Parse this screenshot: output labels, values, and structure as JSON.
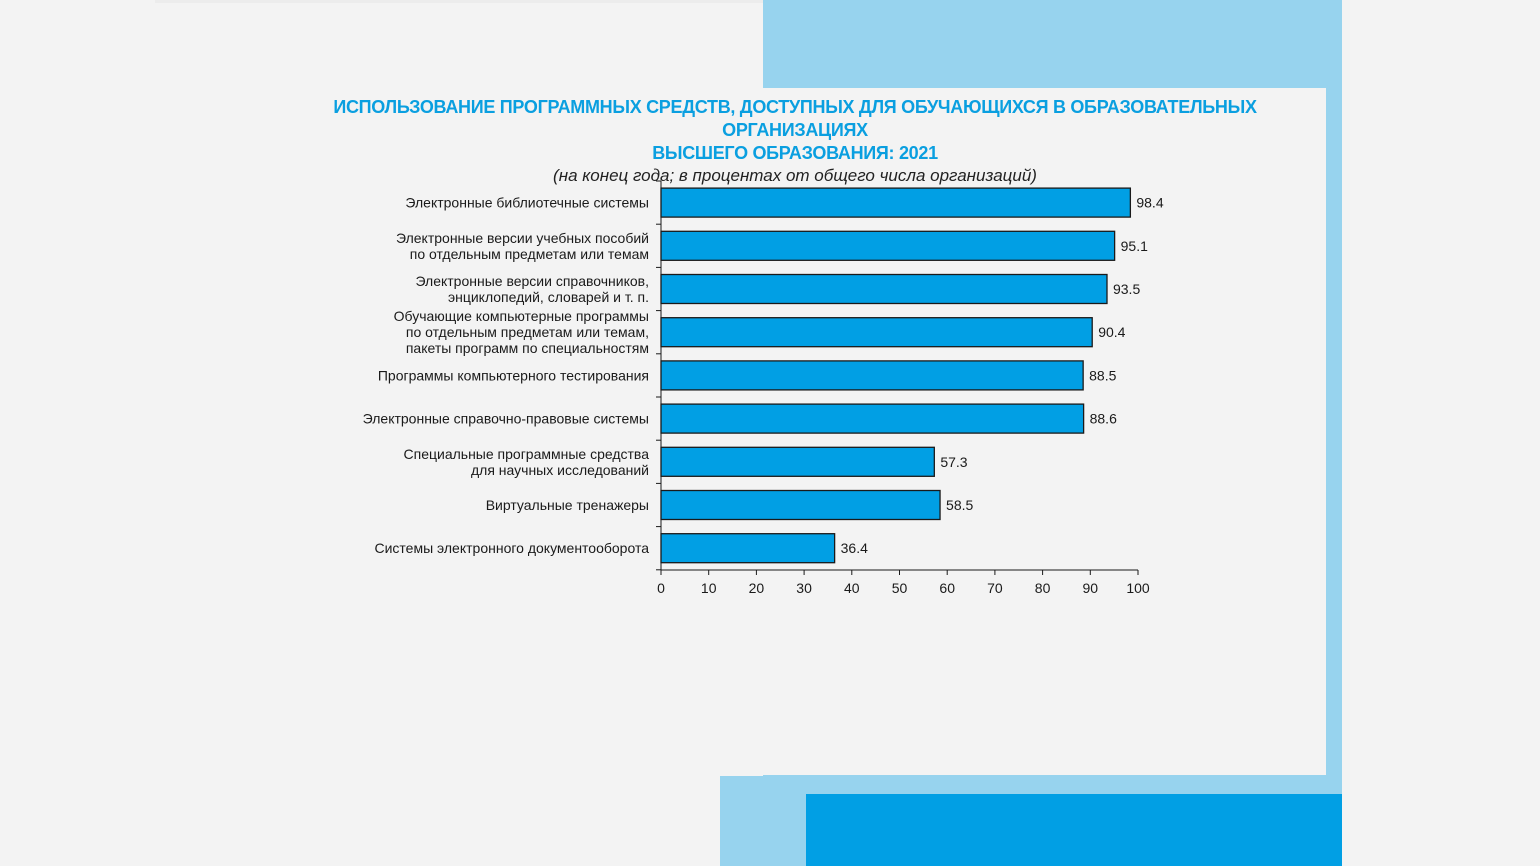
{
  "chart_data": {
    "type": "bar",
    "orientation": "horizontal",
    "title": "ИСПОЛЬЗОВАНИЕ ПРОГРАММНЫХ СРЕДСТВ, ДОСТУПНЫХ ДЛЯ ОБУЧАЮЩИХСЯ В ОБРАЗОВАТЕЛЬНЫХ ОРГАНИЗАЦИЯХ ВЫСШЕГО ОБРАЗОВАНИЯ: 2021",
    "title_lines": [
      "ИСПОЛЬЗОВАНИЕ ПРОГРАММНЫХ СРЕДСТВ, ДОСТУПНЫХ ДЛЯ ОБУЧАЮЩИХСЯ В ОБРАЗОВАТЕЛЬНЫХ ОРГАНИЗАЦИЯХ",
      "ВЫСШЕГО ОБРАЗОВАНИЯ: 2021"
    ],
    "subtitle": "(на конец года; в процентах от общего числа организаций)",
    "categories": [
      [
        "Электронные библиотечные системы"
      ],
      [
        "Электронные версии учебных пособий",
        "по отдельным предметам или темам"
      ],
      [
        "Электронные версии справочников,",
        "энциклопедий, словарей и т. п."
      ],
      [
        "Обучающие компьютерные программы",
        "по отдельным предметам или темам,",
        "пакеты программ по специальностям"
      ],
      [
        "Программы компьютерного тестирования"
      ],
      [
        "Электронные справочно-правовые системы"
      ],
      [
        "Специальные программные средства",
        "для научных исследований"
      ],
      [
        "Виртуальные тренажеры"
      ],
      [
        "Системы электронного документооборота"
      ]
    ],
    "values": [
      98.4,
      95.1,
      93.5,
      90.4,
      88.5,
      88.6,
      57.3,
      58.5,
      36.4
    ],
    "value_labels": [
      "98.4",
      "95.1",
      "93.5",
      "90.4",
      "88.5",
      "88.6",
      "57.3",
      "58.5",
      "36.4"
    ],
    "xlim": [
      0,
      100
    ],
    "xticks": [
      0,
      10,
      20,
      30,
      40,
      50,
      60,
      70,
      80,
      90,
      100
    ],
    "xtick_labels": [
      "0",
      "10",
      "20",
      "30",
      "40",
      "50",
      "60",
      "70",
      "80",
      "90",
      "100"
    ],
    "xlabel": "",
    "ylabel": "",
    "grid": false,
    "legend": "none",
    "colors": {
      "bar_fill": "#019fe4",
      "bar_stroke": "#1a1a1a",
      "title": "#0a9fe0",
      "accent_light": "#97d3ee",
      "accent_dark": "#019fe4"
    }
  }
}
